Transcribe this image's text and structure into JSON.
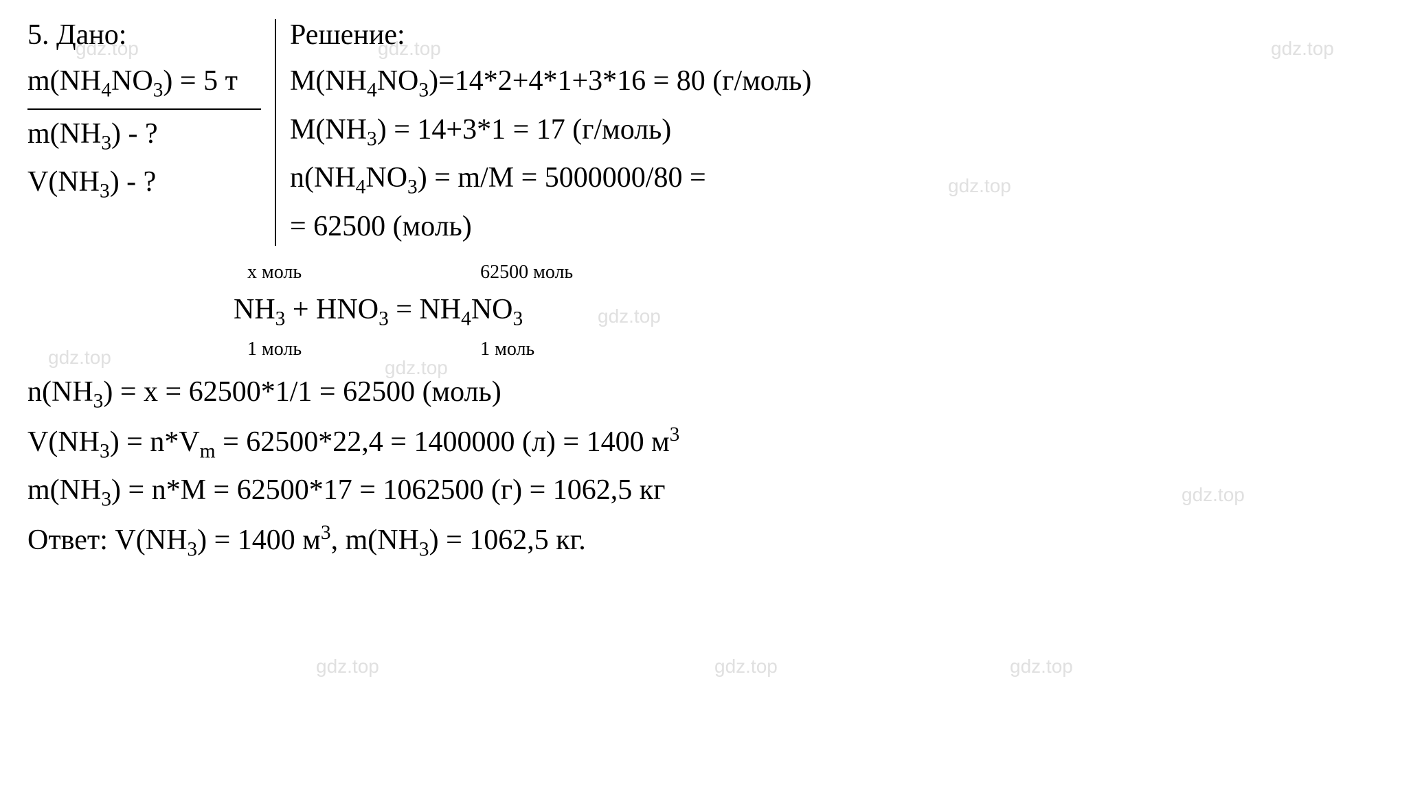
{
  "problem_number": "5.",
  "given": {
    "title": "Дано:",
    "mass_salt": "m(NH<sub>4</sub>NO<sub>3</sub>) = 5 т",
    "find_mass": "m(NH<sub>3</sub>) - ?",
    "find_volume": "V(NH<sub>3</sub>) - ?"
  },
  "solution": {
    "title": "Решение:",
    "molar_mass_salt": "M(NH<sub>4</sub>NO<sub>3</sub>)=14*2+4*1+3*16 = 80 (г/моль)",
    "molar_mass_ammonia": "M(NH<sub>3</sub>) = 14+3*1 = 17 (г/моль)",
    "moles_salt_1": "n(NH<sub>4</sub>NO<sub>3</sub>) = m/M = 5000000/80 =",
    "moles_salt_2": "= 62500 (моль)"
  },
  "equation": {
    "top_left": "х моль",
    "top_right": "62500 моль",
    "main": "NH<sub>3</sub> + HNO<sub>3</sub> = NH<sub>4</sub>NO<sub>3</sub>",
    "bottom_left": "1 моль",
    "bottom_right": "1 моль"
  },
  "calculations": {
    "moles_nh3": "n(NH<sub>3</sub>) = x = 62500*1/1 = 62500 (моль)",
    "volume_nh3": "V(NH<sub>3</sub>) = n*V<sub>m</sub> = 62500*22,4 = 1400000 (л) = 1400 м<sup>3</sup>",
    "mass_nh3": "m(NH<sub>3</sub>) = n*M = 62500*17 = 1062500 (г) = 1062,5 кг",
    "answer": "Ответ: V(NH<sub>3</sub>) = 1400 м<sup>3</sup>, m(NH<sub>3</sub>) = 1062,5 кг."
  },
  "watermark_text": "gdz.top",
  "styling": {
    "font_family": "Times New Roman",
    "main_fontsize": 42,
    "annotation_fontsize": 28,
    "watermark_fontsize": 28,
    "text_color": "#000000",
    "background_color": "#ffffff",
    "watermark_color": "#e0e0e0",
    "divider_width": 2,
    "underline_width": 2
  }
}
